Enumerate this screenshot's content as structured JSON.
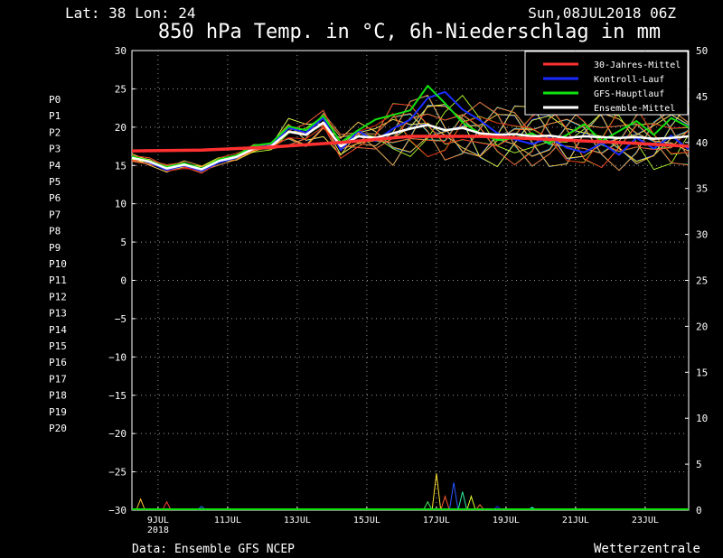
{
  "header": {
    "location": "Lat: 38 Lon: 24",
    "datetime": "Sun,08JUL2018 06Z",
    "title": "850 hPa Temp. in °C, 6h-Niederschlag in mm"
  },
  "footer": {
    "source": "Data: Ensemble GFS NCEP",
    "brand": "Wetterzentrale"
  },
  "members": [
    {
      "name": "P0",
      "color": "#1a2cff"
    },
    {
      "name": "P1",
      "color": "#2a55ff"
    },
    {
      "name": "P2",
      "color": "#2f7dff"
    },
    {
      "name": "P3",
      "color": "#2fa5ff"
    },
    {
      "name": "P4",
      "color": "#2fd0ff"
    },
    {
      "name": "P5",
      "color": "#2ff0d8"
    },
    {
      "name": "P6",
      "color": "#2ff0a0"
    },
    {
      "name": "P7",
      "color": "#4cf060"
    },
    {
      "name": "P8",
      "color": "#5cff3a"
    },
    {
      "name": "P9",
      "color": "#86ff2f"
    },
    {
      "name": "P10",
      "color": "#b6ff2f"
    },
    {
      "name": "P11",
      "color": "#e6ff2f"
    },
    {
      "name": "P12",
      "color": "#ffe02f"
    },
    {
      "name": "P13",
      "color": "#ffc42f"
    },
    {
      "name": "P14",
      "color": "#ffa52f"
    },
    {
      "name": "P15",
      "color": "#ff8a2f"
    },
    {
      "name": "P16",
      "color": "#ff702f"
    },
    {
      "name": "P17",
      "color": "#ff5a2f"
    },
    {
      "name": "P18",
      "color": "#ff402f"
    },
    {
      "name": "P19",
      "color": "#ff2a2a"
    },
    {
      "name": "P20",
      "color": "#e01010"
    }
  ],
  "legend": [
    {
      "label": "30-Jahres-Mittel",
      "color": "#ff3030"
    },
    {
      "label": "Kontroll-Lauf",
      "color": "#1a2cff"
    },
    {
      "label": "GFS-Hauptlauf",
      "color": "#10e010"
    },
    {
      "label": "Ensemble-Mittel",
      "color": "#ffffff"
    }
  ],
  "chart_data": {
    "type": "line",
    "title": "850 hPa Temp. in °C, 6h-Niederschlag in mm",
    "y_left_range": [
      -30,
      30
    ],
    "y_left_ticks": [
      30,
      25,
      20,
      15,
      10,
      5,
      0,
      -5,
      -10,
      -15,
      -20,
      -25,
      -30
    ],
    "y_right_range": [
      0,
      50
    ],
    "y_right_ticks": [
      50,
      45,
      40,
      35,
      30,
      25,
      20,
      15,
      10,
      5,
      0
    ],
    "x_range_hours": [
      0,
      384
    ],
    "x_ticks": [
      {
        "label": "9JUL",
        "sub": "2018",
        "hour": 18
      },
      {
        "label": "11JUL",
        "sub": "",
        "hour": 66
      },
      {
        "label": "13JUL",
        "sub": "",
        "hour": 114
      },
      {
        "label": "15JUL",
        "sub": "",
        "hour": 162
      },
      {
        "label": "17JUL",
        "sub": "",
        "hour": 210
      },
      {
        "label": "19JUL",
        "sub": "",
        "hour": 258
      },
      {
        "label": "21JUL",
        "sub": "",
        "hour": 306
      },
      {
        "label": "23JUL",
        "sub": "",
        "hour": 354
      }
    ],
    "grid": true,
    "legend_position": "top-right",
    "climate_mean": [
      [
        0,
        16.9
      ],
      [
        48,
        17.0
      ],
      [
        96,
        17.4
      ],
      [
        144,
        18.0
      ],
      [
        192,
        18.8
      ],
      [
        240,
        18.8
      ],
      [
        288,
        18.4
      ],
      [
        336,
        18.0
      ],
      [
        384,
        17.5
      ]
    ],
    "ensemble_mean": [
      [
        0,
        16.0
      ],
      [
        12,
        15.5
      ],
      [
        24,
        14.6
      ],
      [
        36,
        15.1
      ],
      [
        48,
        14.5
      ],
      [
        60,
        15.6
      ],
      [
        72,
        16.1
      ],
      [
        84,
        17.2
      ],
      [
        96,
        17.5
      ],
      [
        108,
        19.4
      ],
      [
        120,
        19.0
      ],
      [
        132,
        20.6
      ],
      [
        144,
        17.5
      ],
      [
        156,
        18.8
      ],
      [
        168,
        18.6
      ],
      [
        180,
        19.2
      ],
      [
        192,
        19.8
      ],
      [
        204,
        20.3
      ],
      [
        216,
        19.6
      ],
      [
        228,
        19.9
      ],
      [
        240,
        19.2
      ],
      [
        252,
        19.0
      ],
      [
        264,
        19.1
      ],
      [
        276,
        18.8
      ],
      [
        288,
        18.9
      ],
      [
        300,
        18.6
      ],
      [
        312,
        18.8
      ],
      [
        324,
        18.7
      ],
      [
        336,
        18.6
      ],
      [
        348,
        18.7
      ],
      [
        360,
        18.5
      ],
      [
        372,
        18.6
      ],
      [
        384,
        18.8
      ]
    ],
    "control_run": [
      [
        0,
        16.1
      ],
      [
        12,
        15.4
      ],
      [
        24,
        14.4
      ],
      [
        36,
        15.0
      ],
      [
        48,
        14.3
      ],
      [
        60,
        15.4
      ],
      [
        72,
        16.0
      ],
      [
        84,
        17.4
      ],
      [
        96,
        17.6
      ],
      [
        108,
        19.9
      ],
      [
        120,
        19.3
      ],
      [
        132,
        21.2
      ],
      [
        144,
        17.0
      ],
      [
        156,
        19.5
      ],
      [
        168,
        18.2
      ],
      [
        180,
        19.8
      ],
      [
        192,
        21.0
      ],
      [
        204,
        23.8
      ],
      [
        216,
        24.6
      ],
      [
        228,
        22.3
      ],
      [
        240,
        20.9
      ],
      [
        252,
        19.2
      ],
      [
        264,
        18.4
      ],
      [
        276,
        17.8
      ],
      [
        288,
        18.6
      ],
      [
        300,
        17.3
      ],
      [
        312,
        16.7
      ],
      [
        324,
        17.9
      ],
      [
        336,
        16.4
      ],
      [
        348,
        18.6
      ],
      [
        360,
        17.2
      ],
      [
        372,
        18.9
      ],
      [
        384,
        17.1
      ]
    ],
    "gfs_main_run": [
      [
        0,
        16.2
      ],
      [
        12,
        15.6
      ],
      [
        24,
        14.8
      ],
      [
        36,
        15.3
      ],
      [
        48,
        14.6
      ],
      [
        60,
        15.8
      ],
      [
        72,
        16.3
      ],
      [
        84,
        17.6
      ],
      [
        96,
        17.9
      ],
      [
        108,
        20.1
      ],
      [
        120,
        19.6
      ],
      [
        132,
        21.5
      ],
      [
        144,
        18.0
      ],
      [
        156,
        19.6
      ],
      [
        168,
        21.0
      ],
      [
        180,
        21.6
      ],
      [
        192,
        22.2
      ],
      [
        204,
        25.4
      ],
      [
        216,
        23.1
      ],
      [
        228,
        20.6
      ],
      [
        240,
        19.2
      ],
      [
        252,
        18.3
      ],
      [
        264,
        18.6
      ],
      [
        276,
        19.2
      ],
      [
        288,
        17.9
      ],
      [
        300,
        19.0
      ],
      [
        312,
        20.4
      ],
      [
        324,
        18.2
      ],
      [
        336,
        19.5
      ],
      [
        348,
        20.8
      ],
      [
        360,
        19.0
      ],
      [
        372,
        21.2
      ],
      [
        384,
        20.0
      ]
    ],
    "precip_events_mm": [
      [
        6,
        1.2
      ],
      [
        24,
        0.9
      ],
      [
        48,
        0.4
      ],
      [
        204,
        0.9
      ],
      [
        210,
        4.0
      ],
      [
        216,
        1.5
      ],
      [
        222,
        3.0
      ],
      [
        228,
        2.0
      ],
      [
        234,
        1.5
      ],
      [
        240,
        0.6
      ],
      [
        252,
        0.4
      ],
      [
        276,
        0.3
      ]
    ]
  }
}
